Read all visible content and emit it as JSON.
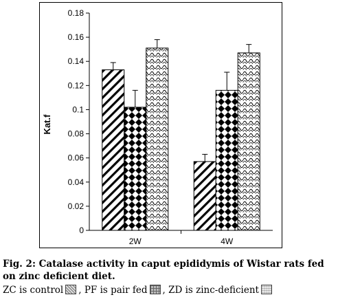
{
  "chart_data": {
    "type": "bar",
    "categories": [
      "2W",
      "4W"
    ],
    "series": [
      {
        "key": "zc",
        "values": [
          0.133,
          0.057
        ],
        "errors": [
          0.006,
          0.006
        ]
      },
      {
        "key": "pf",
        "values": [
          0.102,
          0.116
        ],
        "errors": [
          0.014,
          0.015
        ]
      },
      {
        "key": "zd",
        "values": [
          0.151,
          0.147
        ],
        "errors": [
          0.007,
          0.007
        ]
      }
    ],
    "ylabel": "Kat.f",
    "ylim": [
      0,
      0.18
    ],
    "yticks": [
      "0",
      "0.02",
      "0.04",
      "0.06",
      "0.08",
      "0.1",
      "0.12",
      "0.14",
      "0.16",
      "0.18"
    ],
    "grid": false
  },
  "caption": {
    "title": "Fig. 2: Catalase activity in caput epididymis of Wistar rats fed on zinc deficient diet.",
    "legend_zc": "ZC is control",
    "legend_pf": ", PF is pair fed",
    "legend_zd": ", ZD is zinc-deficient"
  }
}
